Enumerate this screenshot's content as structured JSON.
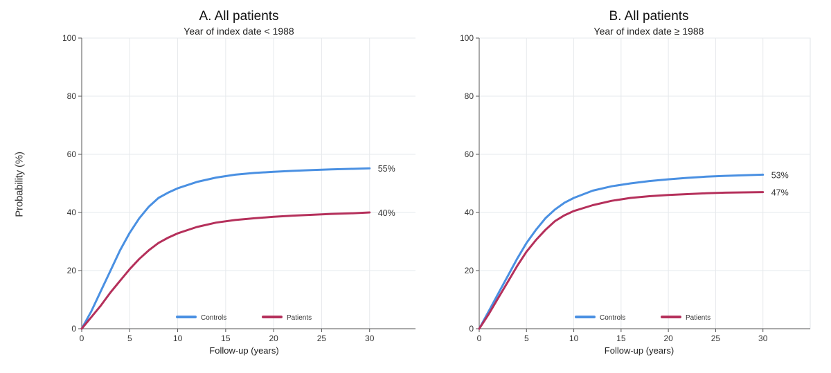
{
  "y_axis_label": "Probability (%)",
  "chart_data": [
    {
      "type": "line",
      "title": "A. All patients",
      "subtitle": "Year of index date < 1988",
      "xlabel": "Follow-up (years)",
      "ylabel": "Probability (%)",
      "xlim": [
        0,
        35
      ],
      "ylim": [
        0,
        100
      ],
      "x_ticks": [
        0,
        5,
        10,
        15,
        20,
        25,
        30
      ],
      "y_ticks": [
        0,
        20,
        40,
        60,
        80,
        100
      ],
      "grid": true,
      "legend_position": "bottom-center",
      "series": [
        {
          "name": "Controls",
          "color": "#4a90e2",
          "end_label": "55%",
          "x": [
            0,
            1,
            2,
            3,
            4,
            5,
            6,
            7,
            8,
            9,
            10,
            12,
            14,
            16,
            18,
            20,
            22,
            24,
            26,
            28,
            30
          ],
          "y": [
            0,
            6,
            13,
            20,
            27,
            33,
            38,
            42,
            45,
            46.8,
            48.3,
            50.5,
            52,
            53,
            53.6,
            54,
            54.3,
            54.6,
            54.8,
            55,
            55.2
          ]
        },
        {
          "name": "Patients",
          "color": "#b5305b",
          "end_label": "40%",
          "x": [
            0,
            1,
            2,
            3,
            4,
            5,
            6,
            7,
            8,
            9,
            10,
            12,
            14,
            16,
            18,
            20,
            22,
            24,
            26,
            28,
            30
          ],
          "y": [
            0,
            4,
            8,
            12.5,
            16.5,
            20.5,
            24,
            27,
            29.5,
            31.3,
            32.8,
            35,
            36.5,
            37.4,
            38,
            38.5,
            38.9,
            39.2,
            39.5,
            39.7,
            40
          ]
        }
      ]
    },
    {
      "type": "line",
      "title": "B. All patients",
      "subtitle": "Year of index date ≥ 1988",
      "xlabel": "Follow-up (years)",
      "ylabel": "",
      "xlim": [
        0,
        35
      ],
      "ylim": [
        0,
        100
      ],
      "x_ticks": [
        0,
        5,
        10,
        15,
        20,
        25,
        30
      ],
      "y_ticks": [
        0,
        20,
        40,
        60,
        80,
        100
      ],
      "grid": true,
      "legend_position": "bottom-center",
      "series": [
        {
          "name": "Controls",
          "color": "#4a90e2",
          "end_label": "53%",
          "x": [
            0,
            1,
            2,
            3,
            4,
            5,
            6,
            7,
            8,
            9,
            10,
            12,
            14,
            16,
            18,
            20,
            22,
            24,
            26,
            28,
            30
          ],
          "y": [
            0,
            6,
            12,
            18,
            24,
            29.5,
            34,
            38,
            41,
            43.3,
            45,
            47.5,
            49,
            50,
            50.8,
            51.4,
            51.9,
            52.3,
            52.6,
            52.8,
            53
          ]
        },
        {
          "name": "Patients",
          "color": "#b5305b",
          "end_label": "47%",
          "x": [
            0,
            1,
            2,
            3,
            4,
            5,
            6,
            7,
            8,
            9,
            10,
            12,
            14,
            16,
            18,
            20,
            22,
            24,
            26,
            28,
            30
          ],
          "y": [
            0,
            5,
            10.5,
            16,
            21.5,
            26.5,
            30.5,
            34,
            37,
            39,
            40.5,
            42.5,
            44,
            45,
            45.6,
            46,
            46.3,
            46.6,
            46.8,
            46.9,
            47
          ]
        }
      ]
    }
  ]
}
